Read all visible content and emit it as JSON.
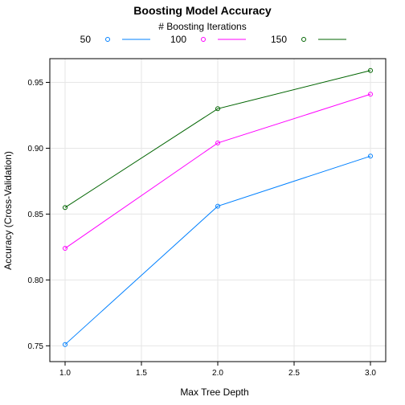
{
  "chart_data": {
    "type": "line",
    "title": "Boosting Model Accuracy",
    "legend_title": "# Boosting Iterations",
    "legend_position": "top",
    "xlabel": "Max Tree Depth",
    "ylabel": "Accuracy (Cross-Validation)",
    "x": [
      1.0,
      2.0,
      3.0
    ],
    "xlim": [
      0.9,
      3.1
    ],
    "ylim": [
      0.738,
      0.968
    ],
    "xticks": [
      1.0,
      1.5,
      2.0,
      2.5,
      3.0
    ],
    "xtick_labels": [
      "1.0",
      "1.5",
      "2.0",
      "2.5",
      "3.0"
    ],
    "yticks": [
      0.75,
      0.8,
      0.85,
      0.9,
      0.95
    ],
    "ytick_labels": [
      "0.75",
      "0.80",
      "0.85",
      "0.90",
      "0.95"
    ],
    "grid": true,
    "series": [
      {
        "name": "50",
        "color": "#0080FF",
        "values": [
          0.751,
          0.856,
          0.894
        ]
      },
      {
        "name": "100",
        "color": "#FF00FF",
        "values": [
          0.824,
          0.904,
          0.941
        ]
      },
      {
        "name": "150",
        "color": "#006400",
        "values": [
          0.855,
          0.93,
          0.959
        ]
      }
    ]
  }
}
